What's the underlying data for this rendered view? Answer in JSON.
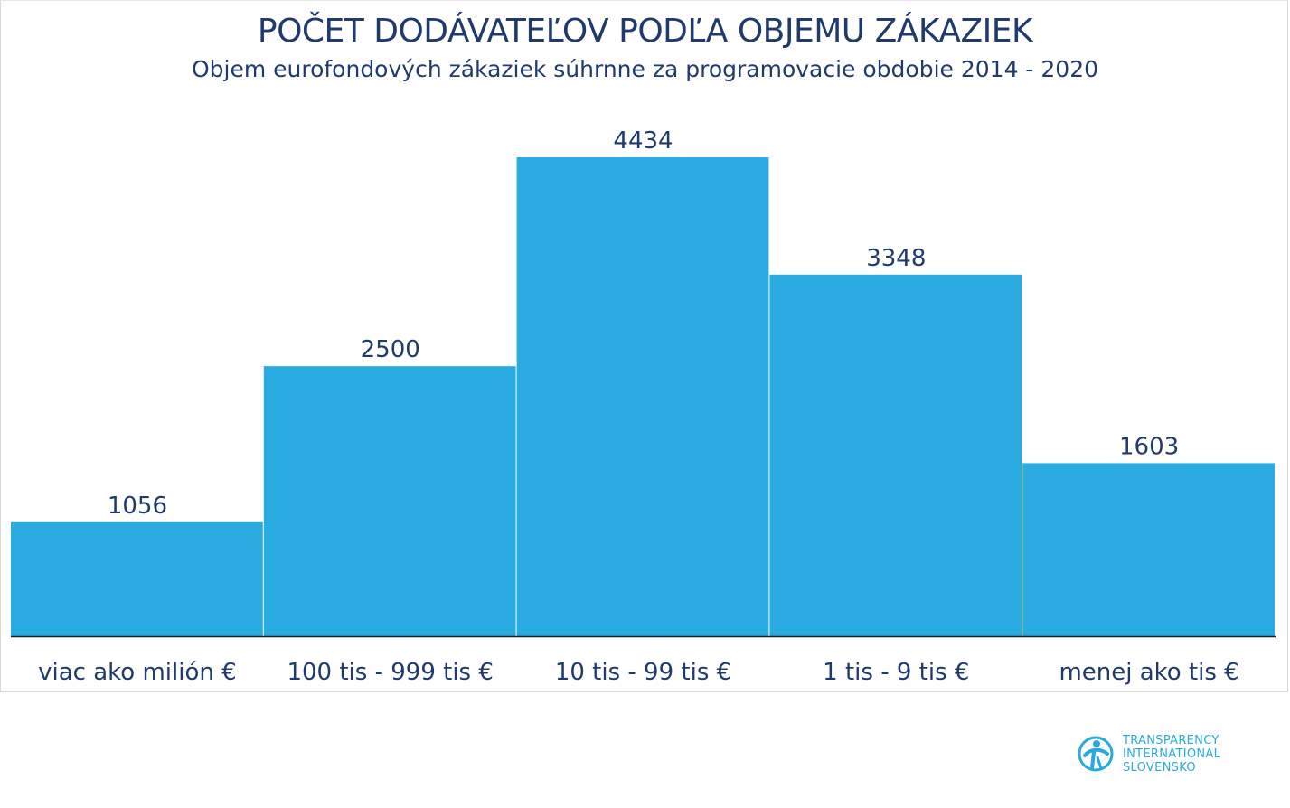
{
  "chart_data": {
    "type": "bar",
    "title": "POČET DODÁVATEĽOV PODĽA OBJEMU ZÁKAZIEK",
    "subtitle": "Objem eurofondových zákaziek súhrnne za programovacie obdobie 2014 - 2020",
    "categories": [
      "viac ako milión €",
      "100 tis - 999 tis €",
      "10 tis - 99 tis €",
      "1 tis - 9 tis €",
      "menej ako tis €"
    ],
    "values": [
      1056,
      2500,
      4434,
      3348,
      1603
    ],
    "ylim": [
      0,
      4434
    ],
    "grid": false,
    "bar_color": "#2aabe2",
    "data_labels": true
  },
  "logo": {
    "icon": "transparency-international-logo-icon",
    "line1": "TRANSPARENCY",
    "line2": "INTERNATIONAL",
    "line3": "SLOVENSKO",
    "color": "#2aa9e0"
  },
  "colors": {
    "title": "#1f3a6d",
    "text": "#1f3a6d",
    "axis": "#1a1a1a"
  }
}
